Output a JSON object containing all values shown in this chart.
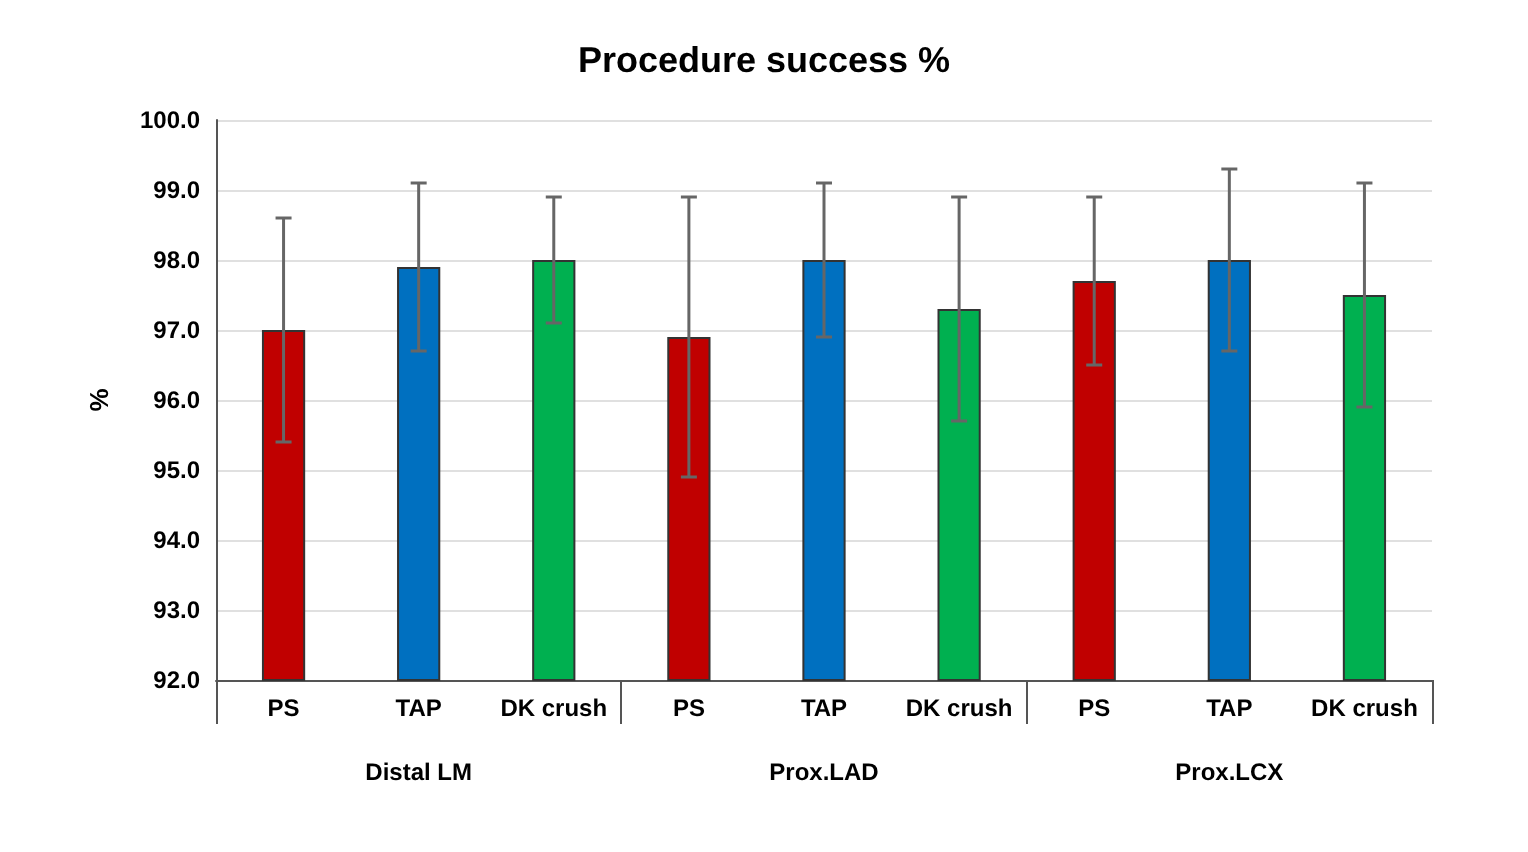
{
  "chart_data": {
    "type": "bar",
    "title": "Procedure success %",
    "ylabel": "%",
    "categories": [
      "PS",
      "TAP",
      "DK crush",
      "PS",
      "TAP",
      "DK crush",
      "PS",
      "TAP",
      "DK crush"
    ],
    "annotations": [
      "Distal LM",
      "Prox.LAD",
      "Prox.LCX"
    ],
    "values": [
      97.0,
      97.9,
      98.0,
      96.9,
      98.0,
      97.3,
      97.7,
      98.0,
      97.5
    ],
    "errors": [
      1.6,
      1.2,
      0.9,
      2.0,
      1.1,
      1.6,
      1.2,
      1.3,
      1.6
    ],
    "colors": [
      "#c00000",
      "#0070c0",
      "#00b050",
      "#c00000",
      "#0070c0",
      "#00b050",
      "#c00000",
      "#0070c0",
      "#00b050"
    ],
    "ylim": [
      92,
      100
    ],
    "yticks": [
      {
        "value": 92,
        "label": "92.0"
      },
      {
        "value": 93,
        "label": "93.0"
      },
      {
        "value": 94,
        "label": "94.0"
      },
      {
        "value": 95,
        "label": "95.0"
      },
      {
        "value": 96,
        "label": "96.0"
      },
      {
        "value": 97,
        "label": "97.0"
      },
      {
        "value": 98,
        "label": "98.0"
      },
      {
        "value": 99,
        "label": "99.0"
      },
      {
        "value": 100,
        "label": "100.0"
      }
    ],
    "grid": "y"
  }
}
